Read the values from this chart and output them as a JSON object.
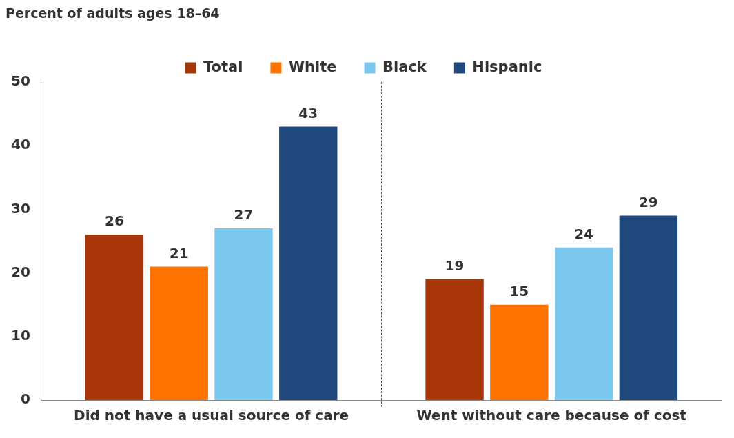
{
  "chart_data": {
    "type": "bar",
    "ylabel": "Percent of adults ages 18–64",
    "categories": [
      "Did not have a usual source of care",
      "Went without care because of cost"
    ],
    "series": [
      {
        "name": "Total",
        "color": "#a83608",
        "values": [
          26,
          19
        ]
      },
      {
        "name": "White",
        "color": "#ff7300",
        "values": [
          21,
          15
        ]
      },
      {
        "name": "Black",
        "color": "#7bc8ef",
        "values": [
          27,
          24
        ]
      },
      {
        "name": "Hispanic",
        "color": "#1f497d",
        "values": [
          43,
          29
        ]
      }
    ],
    "ylim": [
      0,
      50
    ],
    "yticks": [
      0,
      10,
      20,
      30,
      40,
      50
    ],
    "grid": false,
    "legend": "top",
    "data_labels": true
  }
}
